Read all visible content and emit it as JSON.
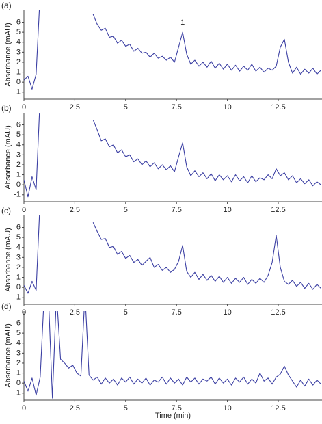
{
  "chart_data": [
    {
      "type": "line",
      "label": "(a)",
      "ylabel": "Absorbance (mAU)",
      "x": [
        0,
        0.2,
        0.4,
        0.6,
        0.8,
        1,
        1.2,
        1.4,
        1.6,
        1.8,
        2,
        2.2,
        2.4,
        2.6,
        2.8,
        3,
        3.2,
        3.4,
        3.6,
        3.8,
        4,
        4.2,
        4.4,
        4.6,
        4.8,
        5,
        5.2,
        5.4,
        5.6,
        5.8,
        6,
        6.2,
        6.4,
        6.6,
        6.8,
        7,
        7.2,
        7.4,
        7.6,
        7.8,
        8,
        8.2,
        8.4,
        8.6,
        8.8,
        9,
        9.2,
        9.4,
        9.6,
        9.8,
        10,
        10.2,
        10.4,
        10.6,
        10.8,
        11,
        11.2,
        11.4,
        11.6,
        11.8,
        12,
        12.2,
        12.4,
        12.6,
        12.8,
        13,
        13.2,
        13.4,
        13.6,
        13.8,
        14,
        14.2,
        14.4,
        14.6
      ],
      "series": [
        {
          "color": "#3b3fa3",
          "values": [
            0.2,
            0.6,
            -0.7,
            0.8,
            9,
            null,
            null,
            null,
            null,
            null,
            null,
            null,
            null,
            null,
            null,
            null,
            null,
            6.8,
            5.8,
            5.2,
            5.4,
            4.5,
            4.6,
            3.9,
            4.2,
            3.6,
            3.8,
            3.1,
            3.4,
            2.9,
            3.0,
            2.5,
            2.9,
            2.4,
            2.6,
            2.2,
            2.5,
            2.0,
            3.5,
            5.0,
            2.8,
            1.8,
            2.2,
            1.6,
            2.0,
            1.5,
            2.1,
            1.4,
            1.9,
            1.3,
            1.8,
            1.2,
            1.7,
            1.1,
            1.6,
            1.2,
            1.8,
            1.1,
            1.5,
            1.0,
            1.4,
            1.2,
            1.6,
            3.5,
            4.3,
            2.0,
            0.9,
            1.5,
            0.8,
            1.3,
            0.9,
            1.4,
            0.8,
            1.2
          ]
        }
      ],
      "annotations": [
        {
          "text": "1",
          "x": 7.8
        }
      ],
      "xlim": [
        0,
        14.65
      ],
      "ylim": [
        -1.7,
        7.2
      ],
      "xticks": [
        0,
        2.5,
        5,
        7.5,
        10,
        12.5
      ],
      "yticks": [
        -1,
        0,
        1,
        2,
        3,
        4,
        5,
        6
      ]
    },
    {
      "type": "line",
      "label": "(b)",
      "ylabel": "Absorbance (mAU)",
      "x": [
        0,
        0.2,
        0.4,
        0.6,
        0.8,
        1,
        1.2,
        1.4,
        1.6,
        1.8,
        2,
        2.2,
        2.4,
        2.6,
        2.8,
        3,
        3.2,
        3.4,
        3.6,
        3.8,
        4,
        4.2,
        4.4,
        4.6,
        4.8,
        5,
        5.2,
        5.4,
        5.6,
        5.8,
        6,
        6.2,
        6.4,
        6.6,
        6.8,
        7,
        7.2,
        7.4,
        7.6,
        7.8,
        8,
        8.2,
        8.4,
        8.6,
        8.8,
        9,
        9.2,
        9.4,
        9.6,
        9.8,
        10,
        10.2,
        10.4,
        10.6,
        10.8,
        11,
        11.2,
        11.4,
        11.6,
        11.8,
        12,
        12.2,
        12.4,
        12.6,
        12.8,
        13,
        13.2,
        13.4,
        13.6,
        13.8,
        14,
        14.2,
        14.4,
        14.6
      ],
      "series": [
        {
          "color": "#3b3fa3",
          "values": [
            0.5,
            -1.2,
            0.8,
            -0.5,
            9,
            null,
            null,
            null,
            null,
            null,
            null,
            null,
            null,
            null,
            null,
            null,
            null,
            6.5,
            5.5,
            4.4,
            4.6,
            3.8,
            4.0,
            3.2,
            3.5,
            2.8,
            3.0,
            2.3,
            2.6,
            2.0,
            2.4,
            1.8,
            2.2,
            1.6,
            2.0,
            1.5,
            1.9,
            1.3,
            2.8,
            4.2,
            1.8,
            0.9,
            1.4,
            0.8,
            1.2,
            0.6,
            1.1,
            0.4,
            1.0,
            0.5,
            0.9,
            0.3,
            1.0,
            0.4,
            0.8,
            0.2,
            0.9,
            0.3,
            0.7,
            0.5,
            1.0,
            0.6,
            1.6,
            0.9,
            1.2,
            0.5,
            0.9,
            0.2,
            0.6,
            0.1,
            0.5,
            -0.1,
            0.3,
            0.0
          ]
        }
      ],
      "xlim": [
        0,
        14.65
      ],
      "ylim": [
        -1.7,
        7.2
      ],
      "xticks": [
        0,
        2.5,
        5,
        7.5,
        10,
        12.5
      ],
      "yticks": [
        -1,
        0,
        1,
        2,
        3,
        4,
        5,
        6
      ]
    },
    {
      "type": "line",
      "label": "(c)",
      "ylabel": "Absorbance (mAU)",
      "x": [
        0,
        0.2,
        0.4,
        0.6,
        0.8,
        1,
        1.2,
        1.4,
        1.6,
        1.8,
        2,
        2.2,
        2.4,
        2.6,
        2.8,
        3,
        3.2,
        3.4,
        3.6,
        3.8,
        4,
        4.2,
        4.4,
        4.6,
        4.8,
        5,
        5.2,
        5.4,
        5.6,
        5.8,
        6,
        6.2,
        6.4,
        6.6,
        6.8,
        7,
        7.2,
        7.4,
        7.6,
        7.8,
        8,
        8.2,
        8.4,
        8.6,
        8.8,
        9,
        9.2,
        9.4,
        9.6,
        9.8,
        10,
        10.2,
        10.4,
        10.6,
        10.8,
        11,
        11.2,
        11.4,
        11.6,
        11.8,
        12,
        12.2,
        12.4,
        12.6,
        12.8,
        13,
        13.2,
        13.4,
        13.6,
        13.8,
        14,
        14.2,
        14.4,
        14.6
      ],
      "series": [
        {
          "color": "#3b3fa3",
          "values": [
            0.2,
            -0.6,
            0.6,
            -0.3,
            9,
            null,
            null,
            null,
            null,
            null,
            null,
            null,
            null,
            null,
            null,
            null,
            null,
            6.5,
            5.6,
            4.8,
            4.9,
            4.0,
            4.1,
            3.3,
            3.6,
            2.9,
            3.2,
            2.5,
            2.8,
            2.2,
            2.6,
            3.0,
            2.0,
            2.3,
            1.7,
            2.0,
            1.5,
            1.8,
            2.6,
            4.2,
            1.6,
            1.0,
            1.5,
            0.8,
            1.3,
            0.7,
            1.2,
            0.6,
            1.1,
            0.5,
            1.0,
            0.4,
            0.9,
            0.5,
            1.0,
            0.3,
            0.8,
            0.4,
            0.9,
            0.5,
            1.2,
            2.5,
            5.2,
            2.0,
            0.6,
            0.3,
            0.7,
            0.1,
            0.5,
            -0.1,
            0.4,
            -0.2,
            0.3,
            -0.1
          ]
        }
      ],
      "xlim": [
        0,
        14.65
      ],
      "ylim": [
        -1.7,
        7.2
      ],
      "xticks": [
        0,
        2.5,
        5,
        7.5,
        10,
        12.5
      ],
      "yticks": [
        -1,
        0,
        1,
        2,
        3,
        4,
        5,
        6
      ]
    },
    {
      "type": "line",
      "label": "(d)",
      "ylabel": "Absorbance (mAU)",
      "xlabel": "Time (min)",
      "x": [
        0,
        0.2,
        0.4,
        0.6,
        0.8,
        1,
        1.2,
        1.4,
        1.6,
        1.8,
        2,
        2.2,
        2.4,
        2.6,
        2.8,
        3,
        3.2,
        3.4,
        3.6,
        3.8,
        4,
        4.2,
        4.4,
        4.6,
        4.8,
        5,
        5.2,
        5.4,
        5.6,
        5.8,
        6,
        6.2,
        6.4,
        6.6,
        6.8,
        7,
        7.2,
        7.4,
        7.6,
        7.8,
        8,
        8.2,
        8.4,
        8.6,
        8.8,
        9,
        9.2,
        9.4,
        9.6,
        9.8,
        10,
        10.2,
        10.4,
        10.6,
        10.8,
        11,
        11.2,
        11.4,
        11.6,
        11.8,
        12,
        12.2,
        12.4,
        12.6,
        12.8,
        13,
        13.2,
        13.4,
        13.6,
        13.8,
        14,
        14.2,
        14.4,
        14.6
      ],
      "series": [
        {
          "color": "#3b3fa3",
          "values": [
            0.2,
            -0.8,
            0.5,
            -1.2,
            0.6,
            9,
            9,
            -1.5,
            9,
            2.4,
            2.0,
            1.5,
            1.8,
            1.0,
            0.7,
            9,
            0.8,
            0.3,
            0.6,
            -0.1,
            0.5,
            0.0,
            0.4,
            -0.2,
            0.5,
            0.1,
            0.6,
            -0.1,
            0.4,
            0.0,
            0.5,
            -0.2,
            0.3,
            0.1,
            0.6,
            -0.1,
            0.5,
            0.0,
            0.4,
            -0.2,
            0.6,
            0.1,
            0.5,
            -0.1,
            0.4,
            0.2,
            0.6,
            -0.1,
            0.5,
            0.0,
            0.4,
            -0.2,
            0.5,
            0.1,
            0.6,
            -0.1,
            0.4,
            0.0,
            1.0,
            0.2,
            0.5,
            -0.1,
            0.6,
            0.9,
            1.7,
            0.8,
            0.2,
            -0.4,
            0.3,
            -0.3,
            0.4,
            -0.2,
            0.3,
            -0.1
          ]
        }
      ],
      "xlim": [
        0,
        14.65
      ],
      "ylim": [
        -1.7,
        7.2
      ],
      "xticks": [
        0,
        2.5,
        5,
        7.5,
        10,
        12.5
      ],
      "yticks": [
        -1,
        0,
        1,
        2,
        3,
        4,
        5,
        6
      ]
    }
  ]
}
